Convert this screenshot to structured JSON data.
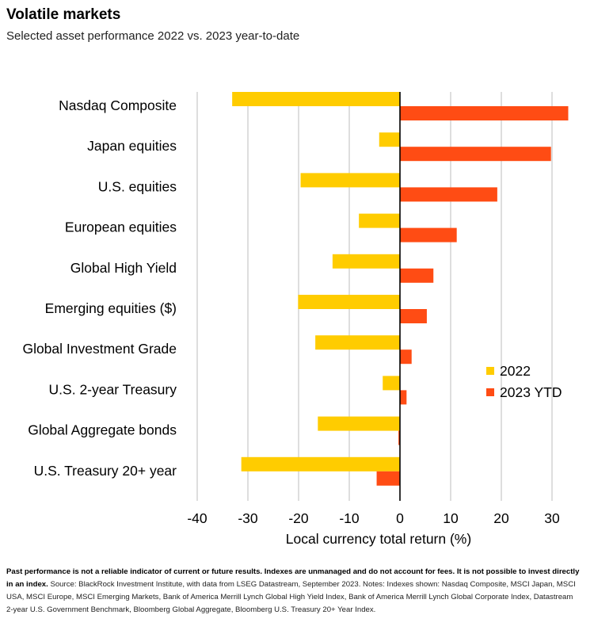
{
  "title": "Volatile markets",
  "subtitle": "Selected asset performance 2022 vs. 2023 year-to-date",
  "footnote": {
    "bold": "Past performance is not a reliable indicator of current or future results. Indexes are unmanaged and do not account for fees. It is not possible to invest directly in an index.",
    "text": " Source: BlackRock Investment Institute, with data from LSEG Datastream, September 2023. Notes: Indexes shown: Nasdaq Composite, MSCI Japan, MSCI USA, MSCI Europe, MSCI Emerging Markets, Bank of America Merrill Lynch Global High Yield Index, Bank of America Merrill Lynch Global Corporate Index, Datastream 2-year U.S. Government Benchmark, Bloomberg Global Aggregate, Bloomberg U.S. Treasury 20+ Year Index."
  },
  "chart_data": {
    "type": "bar",
    "orientation": "horizontal",
    "categories": [
      "Nasdaq Composite",
      "Japan equities",
      "U.S. equities",
      "European equities",
      "Global High Yield",
      "Emerging equities ($)",
      "Global Investment Grade",
      "U.S. 2-year Treasury",
      "Global Aggregate bonds",
      "U.S. Treasury 20+ year"
    ],
    "series": [
      {
        "name": "2022",
        "color": "#FFCC00",
        "values": [
          -33.1,
          -4.1,
          -19.6,
          -8.1,
          -13.3,
          -20.1,
          -16.7,
          -3.4,
          -16.2,
          -31.3
        ]
      },
      {
        "name": "2023 YTD",
        "color": "#FF4C14",
        "values": [
          33.2,
          29.8,
          19.2,
          11.2,
          6.6,
          5.3,
          2.3,
          1.3,
          -0.3,
          -4.6
        ]
      }
    ],
    "xlabel": "Local currency total return (%)",
    "xlim": [
      -40,
      35
    ],
    "xticks": [
      -40,
      -30,
      -20,
      -10,
      0,
      10,
      20,
      30
    ],
    "grid": true,
    "legend": "right"
  }
}
